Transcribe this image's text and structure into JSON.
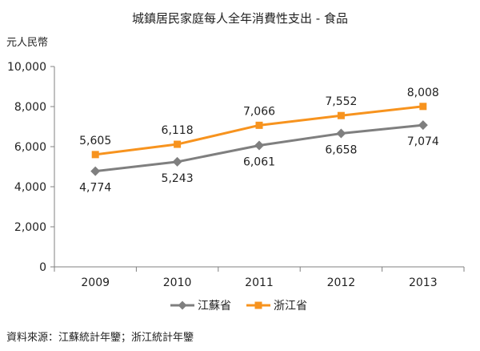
{
  "chart_data": {
    "type": "line",
    "title": "城鎮居民家庭每人全年消費性支出 - 食品",
    "ylabel": "元人民幣",
    "xlabel": "",
    "categories": [
      "2009",
      "2010",
      "2011",
      "2012",
      "2013"
    ],
    "ylim": [
      0,
      10000
    ],
    "yticks": [
      "0",
      "2,000",
      "4,000",
      "6,000",
      "8,000",
      "10,000"
    ],
    "legend_position": "bottom",
    "series": [
      {
        "name": "江蘇省",
        "color": "#7f7f7f",
        "marker": "diamond",
        "values": [
          4774,
          5243,
          6061,
          6658,
          7074
        ],
        "labels": [
          "4,774",
          "5,243",
          "6,061",
          "6,658",
          "7,074"
        ],
        "label_side": "below"
      },
      {
        "name": "浙江省",
        "color": "#f7931e",
        "marker": "square",
        "values": [
          5605,
          6118,
          7066,
          7552,
          8008
        ],
        "labels": [
          "5,605",
          "6,118",
          "7,066",
          "7,552",
          "8,008"
        ],
        "label_side": "above"
      }
    ]
  },
  "source": "資料來源：江蘇統計年鑒；浙江統計年鑒"
}
